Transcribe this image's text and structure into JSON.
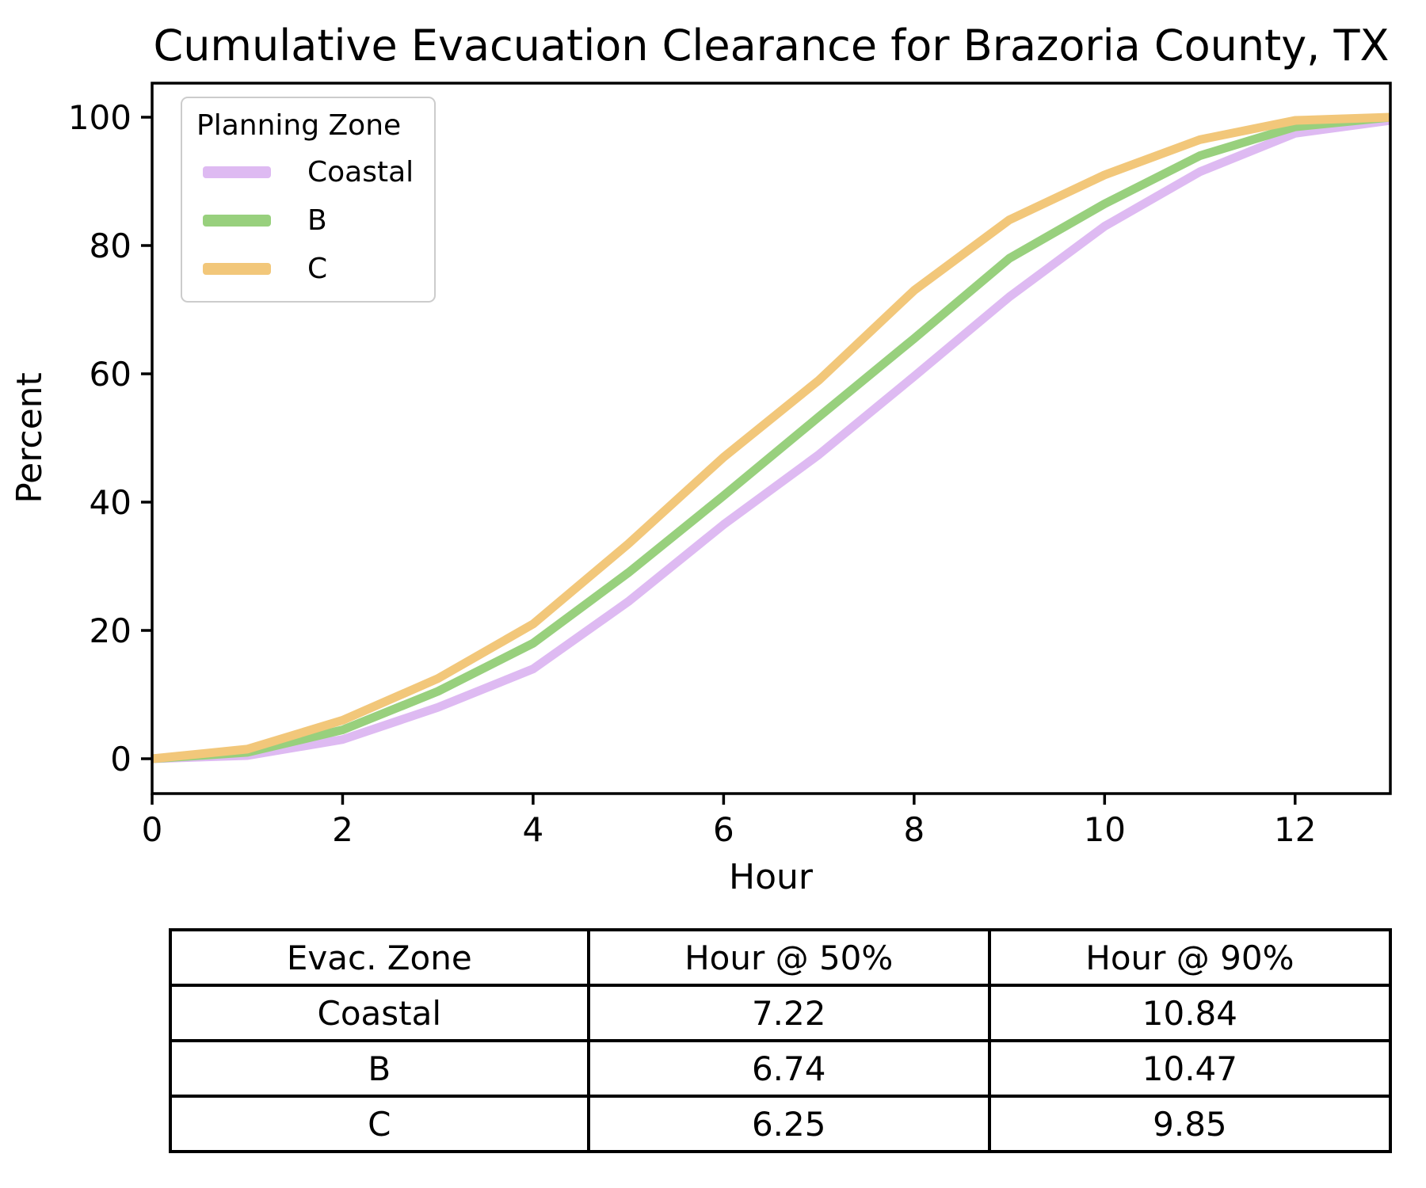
{
  "title": "Cumulative Evacuation Clearance for Brazoria County, TX",
  "chart_data": {
    "type": "line",
    "title": "Cumulative Evacuation Clearance for Brazoria County, TX",
    "xlabel": "Hour",
    "ylabel": "Percent",
    "xlim": [
      0,
      13
    ],
    "ylim": [
      -5.4,
      105.3
    ],
    "x_ticks": [
      0,
      2,
      4,
      6,
      8,
      10,
      12
    ],
    "y_ticks": [
      0,
      20,
      40,
      60,
      80,
      100
    ],
    "grid": false,
    "legend": {
      "title": "Planning Zone",
      "position": "upper left"
    },
    "x": [
      0,
      1,
      2,
      3,
      4,
      5,
      6,
      7,
      8,
      9,
      10,
      11,
      12,
      13
    ],
    "series": [
      {
        "name": "Coastal",
        "color": "#debaf2",
        "values": [
          0,
          0.5,
          3,
          8,
          14,
          24.5,
          36.5,
          47.4,
          59.6,
          72,
          83,
          91.5,
          97.5,
          99.5
        ]
      },
      {
        "name": "B",
        "color": "#98d07d",
        "values": [
          0,
          1,
          4.5,
          10.5,
          18,
          29,
          41,
          53.3,
          65.5,
          78,
          86.5,
          94,
          98.5,
          100
        ]
      },
      {
        "name": "C",
        "color": "#f2c77a",
        "values": [
          0,
          1.5,
          6,
          12.5,
          21,
          33.5,
          47,
          59,
          73,
          84,
          91,
          96.5,
          99.5,
          100
        ]
      }
    ]
  },
  "table": {
    "headers": [
      "Evac. Zone",
      "Hour @ 50%",
      "Hour @ 90%"
    ],
    "rows": [
      {
        "zone": "Coastal",
        "h50": "7.22",
        "h90": "10.84"
      },
      {
        "zone": "B",
        "h50": "6.74",
        "h90": "10.47"
      },
      {
        "zone": "C",
        "h50": "6.25",
        "h90": "9.85"
      }
    ]
  }
}
